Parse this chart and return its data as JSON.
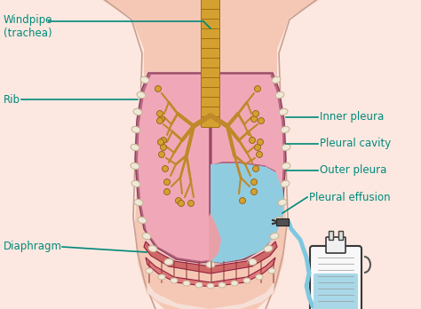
{
  "background_color": "#ffffff",
  "body_skin_color": "#f5c8b5",
  "body_shadow_color": "#e8b0a0",
  "lung_pink": "#f0a8b8",
  "lung_dark_pink": "#e090a8",
  "pleura_outer_color": "#c87090",
  "pleura_inner_color": "#e090a0",
  "effusion_color": "#90cce0",
  "effusion_pink": "#e8a0a8",
  "trachea_color": "#d4a030",
  "trachea_edge": "#a07010",
  "bronchi_color": "#c08828",
  "bud_color": "#d4a030",
  "diaphragm_color": "#c05858",
  "diaphragm_edge": "#903040",
  "rib_color": "#f0e8d8",
  "rib_edge": "#c8b898",
  "label_color": "#00897b",
  "line_color": "#00897b",
  "needle_color": "#404040",
  "tube_color": "#7ec8e0",
  "bottle_body": "#f5f5f5",
  "bottle_edge": "#404040",
  "bottle_fluid": "#a8d8e8",
  "body_outline": "#d0a090",
  "labels": {
    "windpipe": "Windpipe\n(trachea)",
    "rib": "Rib",
    "diaphragm": "Diaphragm",
    "inner_pleura": "Inner pleura",
    "pleural_cavity": "Pleural cavity",
    "outer_pleura": "Outer pleura",
    "pleural_effusion": "Pleural effusion"
  },
  "figsize": [
    4.74,
    3.48
  ],
  "dpi": 100
}
